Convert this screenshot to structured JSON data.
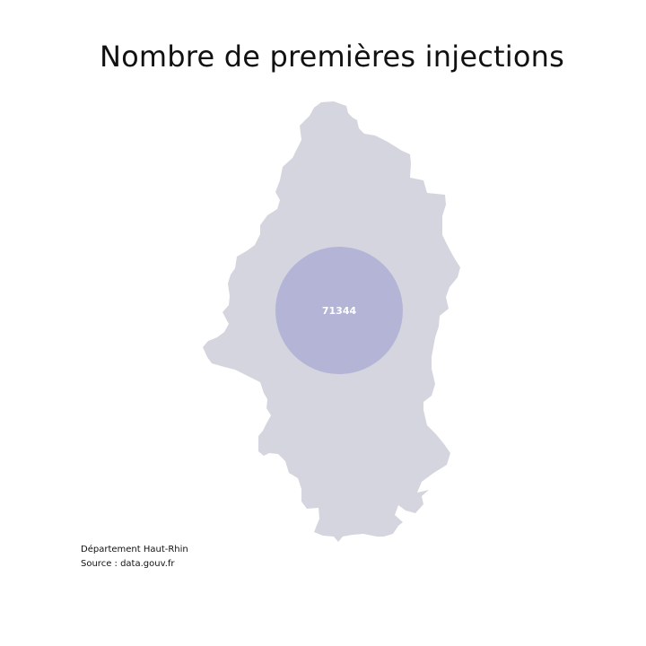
{
  "title": "Nombre de premières injections",
  "department": {
    "name": "Haut-Rhin",
    "fill_color": "#d5d5e0"
  },
  "bubble": {
    "value": "71344",
    "fill_color": "#a8a8d4"
  },
  "caption": {
    "line1": "Département Haut-Rhin",
    "line2": "Source : data.gouv.fr"
  }
}
